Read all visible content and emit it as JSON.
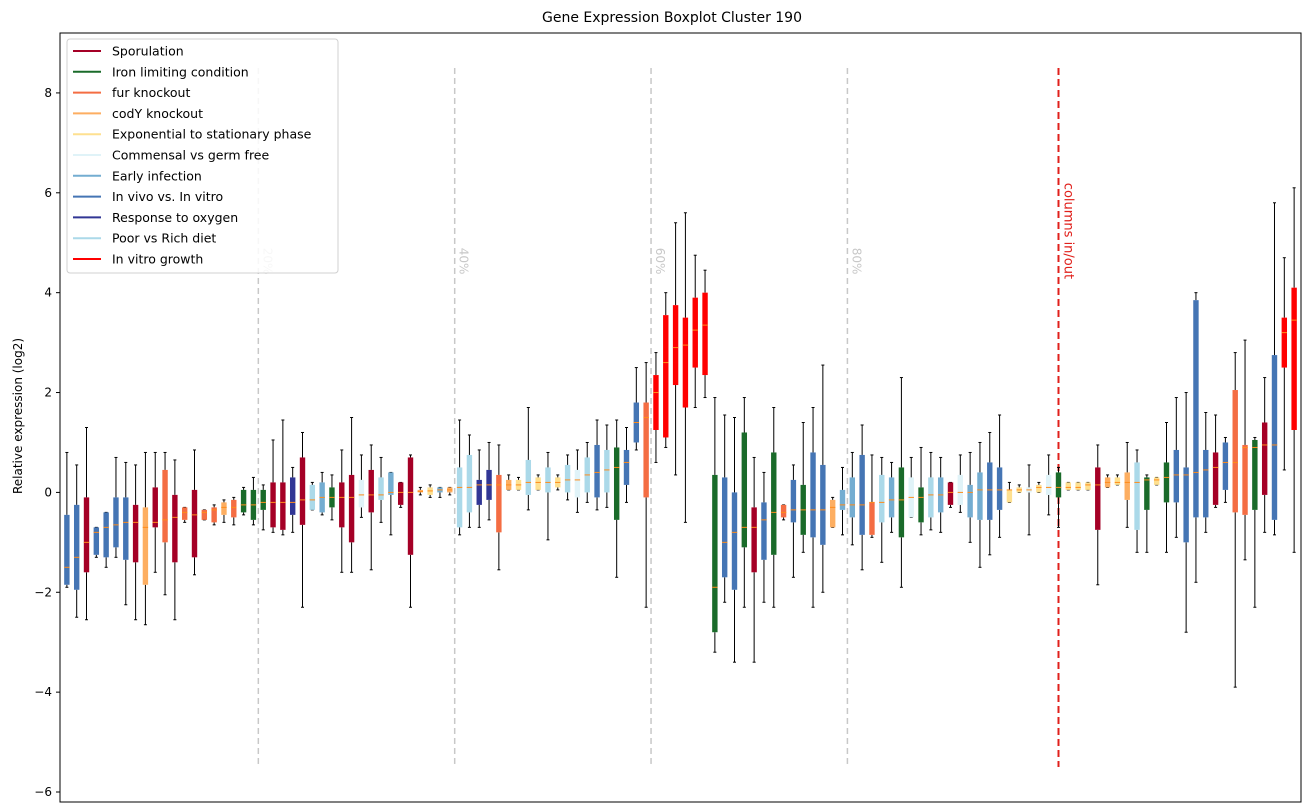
{
  "chart_data": {
    "type": "boxplot",
    "title": "Gene Expression Boxplot Cluster 190",
    "xlabel": "",
    "ylabel": "Relative expression (log2)",
    "ylim": [
      -6.2,
      9.2
    ],
    "yticks": [
      -6,
      -4,
      -2,
      0,
      2,
      4,
      6,
      8
    ],
    "yticklabels": [
      "−6",
      "−4",
      "−2",
      "0",
      "2",
      "4",
      "6",
      "8"
    ],
    "legend_position": "top-left",
    "median_color": "#ff8c1a",
    "series": [
      {
        "name": "Sporulation",
        "color": "#a50026"
      },
      {
        "name": "Iron limiting condition",
        "color": "#1a6b2a"
      },
      {
        "name": "fur knockout",
        "color": "#f46d43"
      },
      {
        "name": "codY knockout",
        "color": "#fdae61"
      },
      {
        "name": "Exponential to stationary phase",
        "color": "#fee090"
      },
      {
        "name": "Commensal vs germ free",
        "color": "#e0f3f8"
      },
      {
        "name": "Early infection",
        "color": "#74add1"
      },
      {
        "name": "In vivo vs. In vitro",
        "color": "#4575b4"
      },
      {
        "name": "Response to oxygen",
        "color": "#313695"
      },
      {
        "name": "Poor vs Rich diet",
        "color": "#abd9e9"
      },
      {
        "name": "In vitro growth",
        "color": "#ff0000"
      }
    ],
    "percentile_markers": [
      {
        "label": "20%",
        "position": 20.5
      },
      {
        "label": "40%",
        "position": 40.5
      },
      {
        "label": "60%",
        "position": 60.5
      },
      {
        "label": "80%",
        "position": 80.5
      }
    ],
    "inout_marker": {
      "label": "columns in/out",
      "position": 102,
      "color": "#e0201b"
    },
    "boxes": [
      {
        "s": 7,
        "min": -1.9,
        "q1": -1.85,
        "med": -1.5,
        "q3": -0.45,
        "max": 0.8
      },
      {
        "s": 7,
        "min": -2.5,
        "q1": -1.95,
        "med": -1.3,
        "q3": -0.25,
        "max": 0.55
      },
      {
        "s": 0,
        "min": -2.55,
        "q1": -1.6,
        "med": -1.0,
        "q3": -0.1,
        "max": 1.3
      },
      {
        "s": 7,
        "min": -1.3,
        "q1": -1.25,
        "med": -0.8,
        "q3": -0.7,
        "max": -0.7
      },
      {
        "s": 7,
        "min": -1.5,
        "q1": -1.3,
        "med": -0.7,
        "q3": -0.4,
        "max": -0.4
      },
      {
        "s": 7,
        "min": -1.3,
        "q1": -1.1,
        "med": -0.65,
        "q3": -0.1,
        "max": 0.7
      },
      {
        "s": 7,
        "min": -2.25,
        "q1": -1.35,
        "med": -0.6,
        "q3": -0.1,
        "max": 0.6
      },
      {
        "s": 0,
        "min": -2.55,
        "q1": -1.4,
        "med": -0.6,
        "q3": -0.25,
        "max": 0.55
      },
      {
        "s": 3,
        "min": -2.65,
        "q1": -1.85,
        "med": -0.7,
        "q3": -0.3,
        "max": 0.8
      },
      {
        "s": 0,
        "min": -1.6,
        "q1": -0.7,
        "med": -0.6,
        "q3": 0.1,
        "max": 0.8
      },
      {
        "s": 2,
        "min": -2.05,
        "q1": -1.0,
        "med": -0.55,
        "q3": 0.45,
        "max": 0.8
      },
      {
        "s": 0,
        "min": -2.55,
        "q1": -1.4,
        "med": -0.5,
        "q3": -0.05,
        "max": 0.65
      },
      {
        "s": 2,
        "min": -0.6,
        "q1": -0.55,
        "med": -0.4,
        "q3": -0.3,
        "max": -0.3
      },
      {
        "s": 0,
        "min": -1.65,
        "q1": -1.3,
        "med": -0.45,
        "q3": 0.05,
        "max": 0.85
      },
      {
        "s": 2,
        "min": -0.55,
        "q1": -0.55,
        "med": -0.4,
        "q3": -0.35,
        "max": -0.35
      },
      {
        "s": 2,
        "min": -0.65,
        "q1": -0.6,
        "med": -0.35,
        "q3": -0.3,
        "max": -0.25
      },
      {
        "s": 3,
        "min": -0.6,
        "q1": -0.45,
        "med": -0.3,
        "q3": -0.2,
        "max": -0.15
      },
      {
        "s": 2,
        "min": -0.65,
        "q1": -0.5,
        "med": -0.3,
        "q3": -0.15,
        "max": -0.1
      },
      {
        "s": 1,
        "min": -0.45,
        "q1": -0.4,
        "med": -0.25,
        "q3": 0.05,
        "max": 0.1
      },
      {
        "s": 1,
        "min": -0.65,
        "q1": -0.55,
        "med": -0.25,
        "q3": 0.05,
        "max": 0.3
      },
      {
        "s": 1,
        "min": -0.75,
        "q1": -0.35,
        "med": -0.2,
        "q3": 0.05,
        "max": 0.15
      },
      {
        "s": 0,
        "min": -0.8,
        "q1": -0.7,
        "med": -0.2,
        "q3": 0.2,
        "max": 1.05
      },
      {
        "s": 0,
        "min": -0.85,
        "q1": -0.75,
        "med": -0.2,
        "q3": 0.2,
        "max": 1.45
      },
      {
        "s": 8,
        "min": -0.8,
        "q1": -0.45,
        "med": -0.2,
        "q3": 0.3,
        "max": 0.5
      },
      {
        "s": 0,
        "min": -2.3,
        "q1": -0.65,
        "med": -0.15,
        "q3": 0.7,
        "max": 1.2
      },
      {
        "s": 9,
        "min": -0.35,
        "q1": -0.35,
        "med": -0.15,
        "q3": 0.15,
        "max": 0.2
      },
      {
        "s": 6,
        "min": -0.45,
        "q1": -0.4,
        "med": -0.1,
        "q3": 0.2,
        "max": 0.4
      },
      {
        "s": 1,
        "min": -0.55,
        "q1": -0.3,
        "med": -0.1,
        "q3": 0.1,
        "max": 0.35
      },
      {
        "s": 0,
        "min": -1.6,
        "q1": -0.7,
        "med": -0.1,
        "q3": 0.2,
        "max": 0.85
      },
      {
        "s": 0,
        "min": -1.6,
        "q1": -1.0,
        "med": -0.1,
        "q3": 0.35,
        "max": 1.5
      },
      {
        "s": 5,
        "min": -0.5,
        "q1": -0.3,
        "med": -0.05,
        "q3": 0.25,
        "max": 0.75
      },
      {
        "s": 0,
        "min": -1.55,
        "q1": -0.4,
        "med": -0.05,
        "q3": 0.45,
        "max": 0.95
      },
      {
        "s": 9,
        "min": -0.6,
        "q1": -0.15,
        "med": -0.05,
        "q3": 0.3,
        "max": 0.7
      },
      {
        "s": 6,
        "min": -0.85,
        "q1": -0.05,
        "med": 0.0,
        "q3": 0.4,
        "max": 0.4
      },
      {
        "s": 0,
        "min": -0.3,
        "q1": -0.25,
        "med": 0.0,
        "q3": 0.2,
        "max": 0.2
      },
      {
        "s": 0,
        "min": -2.3,
        "q1": -1.25,
        "med": 0.0,
        "q3": 0.7,
        "max": 0.75
      },
      {
        "s": 3,
        "min": -0.05,
        "q1": 0.0,
        "med": 0.02,
        "q3": 0.05,
        "max": 0.1
      },
      {
        "s": 4,
        "min": -0.1,
        "q1": -0.05,
        "med": 0.03,
        "q3": 0.1,
        "max": 0.15
      },
      {
        "s": 6,
        "min": -0.1,
        "q1": 0.0,
        "med": 0.05,
        "q3": 0.1,
        "max": 0.1
      },
      {
        "s": 3,
        "min": -0.05,
        "q1": 0.0,
        "med": 0.05,
        "q3": 0.1,
        "max": 0.1
      },
      {
        "s": 9,
        "min": -0.85,
        "q1": -0.7,
        "med": 0.1,
        "q3": 0.5,
        "max": 1.45
      },
      {
        "s": 9,
        "min": -0.7,
        "q1": -0.4,
        "med": 0.1,
        "q3": 0.75,
        "max": 1.15
      },
      {
        "s": 8,
        "min": -0.7,
        "q1": -0.25,
        "med": 0.15,
        "q3": 0.25,
        "max": 0.85
      },
      {
        "s": 8,
        "min": -0.55,
        "q1": -0.15,
        "med": 0.15,
        "q3": 0.45,
        "max": 1.0
      },
      {
        "s": 2,
        "min": -1.55,
        "q1": -0.8,
        "med": 0.15,
        "q3": 0.35,
        "max": 0.95
      },
      {
        "s": 3,
        "min": 0.05,
        "q1": 0.05,
        "med": 0.15,
        "q3": 0.25,
        "max": 0.35
      },
      {
        "s": 4,
        "min": 0.05,
        "q1": 0.05,
        "med": 0.15,
        "q3": 0.25,
        "max": 0.3
      },
      {
        "s": 9,
        "min": -0.35,
        "q1": -0.05,
        "med": 0.2,
        "q3": 0.65,
        "max": 1.7
      },
      {
        "s": 4,
        "min": 0.05,
        "q1": 0.05,
        "med": 0.2,
        "q3": 0.3,
        "max": 0.35
      },
      {
        "s": 9,
        "min": -0.95,
        "q1": 0.0,
        "med": 0.2,
        "q3": 0.5,
        "max": 0.8
      },
      {
        "s": 4,
        "min": 0.05,
        "q1": 0.1,
        "med": 0.2,
        "q3": 0.3,
        "max": 0.35
      },
      {
        "s": 9,
        "min": -0.15,
        "q1": 0.0,
        "med": 0.25,
        "q3": 0.55,
        "max": 0.75
      },
      {
        "s": 5,
        "min": -0.4,
        "q1": -0.1,
        "med": 0.25,
        "q3": 0.45,
        "max": 0.85
      },
      {
        "s": 9,
        "min": -0.2,
        "q1": 0.0,
        "med": 0.35,
        "q3": 0.7,
        "max": 1.0
      },
      {
        "s": 7,
        "min": -0.35,
        "q1": -0.1,
        "med": 0.4,
        "q3": 0.95,
        "max": 1.45
      },
      {
        "s": 9,
        "min": -0.3,
        "q1": 0.0,
        "med": 0.45,
        "q3": 0.85,
        "max": 1.35
      },
      {
        "s": 1,
        "min": -1.7,
        "q1": -0.55,
        "med": 0.5,
        "q3": 0.9,
        "max": 1.45
      },
      {
        "s": 7,
        "min": -0.2,
        "q1": 0.15,
        "med": 0.6,
        "q3": 0.85,
        "max": 1.3
      },
      {
        "s": 7,
        "min": 0.85,
        "q1": 1.0,
        "med": 1.4,
        "q3": 1.8,
        "max": 2.5
      },
      {
        "s": 2,
        "min": -2.3,
        "q1": -0.1,
        "med": 1.5,
        "q3": 1.8,
        "max": 2.6
      },
      {
        "s": 10,
        "min": 0.6,
        "q1": 1.25,
        "med": 2.0,
        "q3": 2.35,
        "max": 2.8
      },
      {
        "s": 10,
        "min": 0.9,
        "q1": 1.1,
        "med": 2.6,
        "q3": 3.55,
        "max": 4.0
      },
      {
        "s": 10,
        "min": 0.35,
        "q1": 2.15,
        "med": 2.9,
        "q3": 3.75,
        "max": 5.4
      },
      {
        "s": 10,
        "min": -0.6,
        "q1": 1.7,
        "med": 2.95,
        "q3": 3.5,
        "max": 5.6
      },
      {
        "s": 10,
        "min": 1.7,
        "q1": 2.5,
        "med": 3.25,
        "q3": 3.9,
        "max": 4.75
      },
      {
        "s": 10,
        "min": 1.9,
        "q1": 2.35,
        "med": 3.35,
        "q3": 4.0,
        "max": 4.45
      },
      {
        "s": 1,
        "min": -3.2,
        "q1": -2.8,
        "med": -1.9,
        "q3": 0.35,
        "max": 1.9
      },
      {
        "s": 7,
        "min": -2.2,
        "q1": -1.7,
        "med": -1.0,
        "q3": 0.3,
        "max": 1.55
      },
      {
        "s": 7,
        "min": -3.4,
        "q1": -1.95,
        "med": -0.8,
        "q3": 0.0,
        "max": 1.5
      },
      {
        "s": 1,
        "min": -2.3,
        "q1": -1.1,
        "med": -0.7,
        "q3": 1.2,
        "max": 1.9
      },
      {
        "s": 0,
        "min": -3.4,
        "q1": -1.6,
        "med": -0.7,
        "q3": -0.3,
        "max": 0.7
      },
      {
        "s": 7,
        "min": -2.2,
        "q1": -1.35,
        "med": -0.55,
        "q3": -0.2,
        "max": 0.4
      },
      {
        "s": 1,
        "min": -2.3,
        "q1": -1.25,
        "med": -0.4,
        "q3": 0.8,
        "max": 1.7
      },
      {
        "s": 2,
        "min": -0.55,
        "q1": -0.5,
        "med": -0.4,
        "q3": -0.25,
        "max": -0.25
      },
      {
        "s": 7,
        "min": -1.7,
        "q1": -0.6,
        "med": -0.35,
        "q3": 0.25,
        "max": 0.55
      },
      {
        "s": 1,
        "min": -1.2,
        "q1": -0.85,
        "med": -0.35,
        "q3": 0.15,
        "max": 1.4
      },
      {
        "s": 7,
        "min": -2.3,
        "q1": -0.9,
        "med": -0.35,
        "q3": 0.8,
        "max": 1.7
      },
      {
        "s": 7,
        "min": -2.0,
        "q1": -1.05,
        "med": -0.35,
        "q3": 0.55,
        "max": 2.55
      },
      {
        "s": 3,
        "min": -0.7,
        "q1": -0.7,
        "med": -0.3,
        "q3": -0.15,
        "max": -0.1
      },
      {
        "s": 6,
        "min": -0.85,
        "q1": -0.35,
        "med": -0.25,
        "q3": 0.05,
        "max": 0.5
      },
      {
        "s": 6,
        "min": -1.05,
        "q1": -0.5,
        "med": -0.25,
        "q3": 0.3,
        "max": 0.8
      },
      {
        "s": 7,
        "min": -1.55,
        "q1": -0.85,
        "med": -0.25,
        "q3": 0.75,
        "max": 1.35
      },
      {
        "s": 2,
        "min": -0.9,
        "q1": -0.85,
        "med": -0.2,
        "q3": -0.2,
        "max": 0.75
      },
      {
        "s": 9,
        "min": -1.4,
        "q1": -0.6,
        "med": -0.2,
        "q3": 0.35,
        "max": 0.7
      },
      {
        "s": 6,
        "min": -0.8,
        "q1": -0.5,
        "med": -0.15,
        "q3": 0.3,
        "max": 0.6
      },
      {
        "s": 1,
        "min": -1.9,
        "q1": -0.9,
        "med": -0.15,
        "q3": 0.5,
        "max": 2.3
      },
      {
        "s": 5,
        "min": -0.5,
        "q1": -0.5,
        "med": -0.1,
        "q3": 0.3,
        "max": 0.7
      },
      {
        "s": 1,
        "min": -0.85,
        "q1": -0.6,
        "med": -0.1,
        "q3": 0.1,
        "max": 0.9
      },
      {
        "s": 9,
        "min": -0.75,
        "q1": -0.5,
        "med": -0.05,
        "q3": 0.3,
        "max": 0.8
      },
      {
        "s": 6,
        "min": -0.8,
        "q1": -0.4,
        "med": -0.05,
        "q3": 0.3,
        "max": 0.7
      },
      {
        "s": 0,
        "min": -0.3,
        "q1": -0.25,
        "med": 0.0,
        "q3": 0.2,
        "max": 0.2
      },
      {
        "s": 5,
        "min": -0.4,
        "q1": -0.25,
        "med": 0.0,
        "q3": 0.35,
        "max": 0.75
      },
      {
        "s": 6,
        "min": -1.0,
        "q1": -0.5,
        "med": 0.0,
        "q3": 0.15,
        "max": 0.8
      },
      {
        "s": 6,
        "min": -1.5,
        "q1": -0.55,
        "med": 0.05,
        "q3": 0.4,
        "max": 1.0
      },
      {
        "s": 7,
        "min": -1.25,
        "q1": -0.55,
        "med": 0.05,
        "q3": 0.6,
        "max": 1.2
      },
      {
        "s": 7,
        "min": -0.9,
        "q1": -0.35,
        "med": 0.05,
        "q3": 0.5,
        "max": 1.55
      },
      {
        "s": 4,
        "min": -0.2,
        "q1": -0.2,
        "med": 0.05,
        "q3": 0.05,
        "max": 0.2
      },
      {
        "s": 4,
        "min": 0.0,
        "q1": 0.0,
        "med": 0.05,
        "q3": 0.1,
        "max": 0.15
      },
      {
        "s": 5,
        "min": -0.85,
        "q1": 0.0,
        "med": 0.05,
        "q3": 0.1,
        "max": 0.55
      },
      {
        "s": 4,
        "min": 0.0,
        "q1": 0.0,
        "med": 0.1,
        "q3": 0.15,
        "max": 0.2
      },
      {
        "s": 5,
        "min": -0.45,
        "q1": -0.05,
        "med": 0.1,
        "q3": 0.35,
        "max": 0.75
      },
      {
        "s": 1,
        "min": -0.7,
        "q1": -0.1,
        "med": 0.1,
        "q3": 0.4,
        "max": 0.5
      },
      {
        "s": 4,
        "min": 0.05,
        "q1": 0.05,
        "med": 0.1,
        "q3": 0.2,
        "max": 0.2
      },
      {
        "s": 4,
        "min": 0.05,
        "q1": 0.05,
        "med": 0.1,
        "q3": 0.2,
        "max": 0.2
      },
      {
        "s": 4,
        "min": 0.05,
        "q1": 0.05,
        "med": 0.15,
        "q3": 0.2,
        "max": 0.2
      },
      {
        "s": 0,
        "min": -1.85,
        "q1": -0.75,
        "med": 0.15,
        "q3": 0.5,
        "max": 0.95
      },
      {
        "s": 3,
        "min": 0.1,
        "q1": 0.1,
        "med": 0.2,
        "q3": 0.3,
        "max": 0.35
      },
      {
        "s": 4,
        "min": 0.15,
        "q1": 0.15,
        "med": 0.2,
        "q3": 0.3,
        "max": 0.35
      },
      {
        "s": 3,
        "min": -0.7,
        "q1": -0.15,
        "med": 0.2,
        "q3": 0.4,
        "max": 1.0
      },
      {
        "s": 9,
        "min": -1.2,
        "q1": -0.75,
        "med": 0.2,
        "q3": 0.6,
        "max": 0.85
      },
      {
        "s": 1,
        "min": -1.2,
        "q1": -0.35,
        "med": 0.25,
        "q3": 0.3,
        "max": 0.35
      },
      {
        "s": 4,
        "min": 0.15,
        "q1": 0.15,
        "med": 0.25,
        "q3": 0.3,
        "max": 0.3
      },
      {
        "s": 1,
        "min": -1.2,
        "q1": -0.2,
        "med": 0.3,
        "q3": 0.6,
        "max": 1.4
      },
      {
        "s": 7,
        "min": -0.9,
        "q1": -0.2,
        "med": 0.35,
        "q3": 0.85,
        "max": 1.9
      },
      {
        "s": 7,
        "min": -2.8,
        "q1": -1.0,
        "med": 0.35,
        "q3": 0.5,
        "max": 2.0
      },
      {
        "s": 7,
        "min": -1.8,
        "q1": -0.5,
        "med": 0.4,
        "q3": 3.85,
        "max": 4.0
      },
      {
        "s": 7,
        "min": -0.8,
        "q1": -0.5,
        "med": 0.45,
        "q3": 0.85,
        "max": 1.6
      },
      {
        "s": 0,
        "min": -0.3,
        "q1": -0.25,
        "med": 0.5,
        "q3": 0.8,
        "max": 1.55
      },
      {
        "s": 7,
        "min": -0.2,
        "q1": 0.05,
        "med": 0.6,
        "q3": 1.0,
        "max": 1.1
      },
      {
        "s": 2,
        "min": -3.9,
        "q1": -0.4,
        "med": 0.6,
        "q3": 2.05,
        "max": 2.8
      },
      {
        "s": 2,
        "min": -1.35,
        "q1": -0.45,
        "med": 0.9,
        "q3": 0.95,
        "max": 3.05
      },
      {
        "s": 1,
        "min": -2.3,
        "q1": -0.35,
        "med": 0.9,
        "q3": 1.05,
        "max": 1.1
      },
      {
        "s": 0,
        "min": -0.8,
        "q1": -0.05,
        "med": 0.95,
        "q3": 1.4,
        "max": 2.3
      },
      {
        "s": 7,
        "min": -0.85,
        "q1": -0.55,
        "med": 0.95,
        "q3": 2.75,
        "max": 5.8
      },
      {
        "s": 10,
        "min": 0.45,
        "q1": 2.5,
        "med": 3.2,
        "q3": 3.5,
        "max": 4.7
      },
      {
        "s": 10,
        "min": -1.2,
        "q1": 1.25,
        "med": 3.45,
        "q3": 4.1,
        "max": 6.1
      }
    ]
  }
}
